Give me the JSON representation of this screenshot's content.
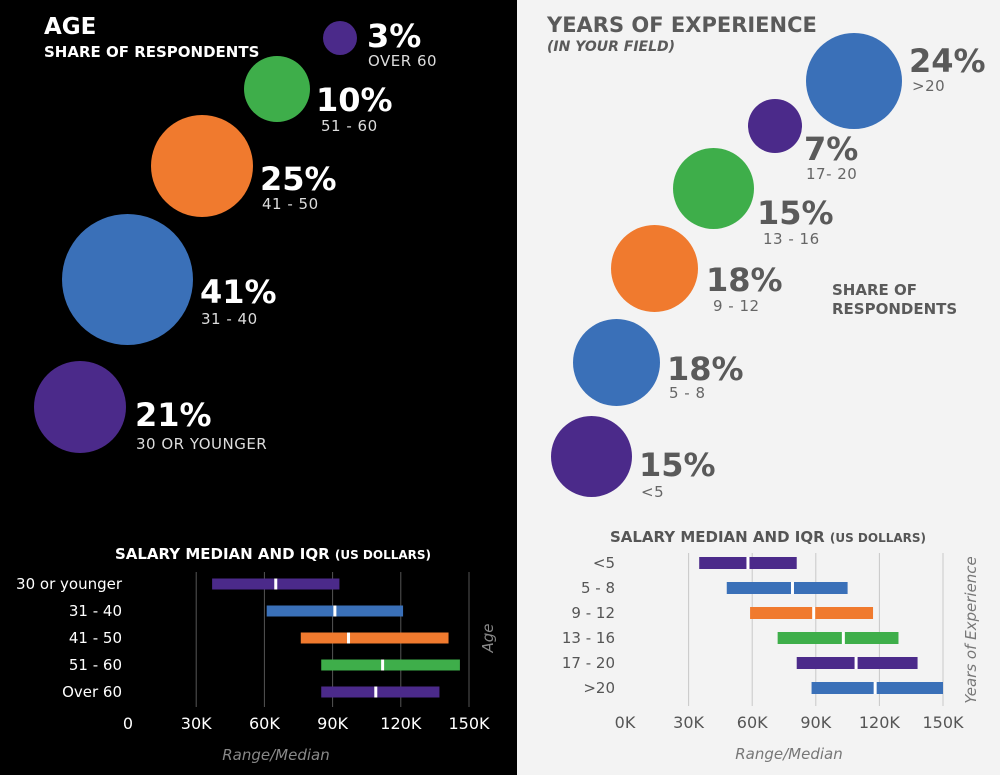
{
  "age_panel": {
    "title": "AGE",
    "subtitle": "SHARE OF RESPONDENTS",
    "bubbles": [
      {
        "pct": "3%",
        "label": "OVER 60",
        "value": 3,
        "color": "#4b2a8a"
      },
      {
        "pct": "10%",
        "label": "51 - 60",
        "value": 10,
        "color": "#3eae4a"
      },
      {
        "pct": "25%",
        "label": "41 - 50",
        "value": 25,
        "color": "#f07a2e"
      },
      {
        "pct": "41%",
        "label": "31 - 40",
        "value": 41,
        "color": "#3a70b8"
      },
      {
        "pct": "21%",
        "label": "30 OR YOUNGER",
        "value": 21,
        "color": "#4b2a8a"
      }
    ]
  },
  "experience_panel": {
    "title": "YEARS OF EXPERIENCE",
    "subtitle": "(IN YOUR FIELD)",
    "share_label_1": "SHARE OF",
    "share_label_2": "RESPONDENTS",
    "bubbles": [
      {
        "pct": "24%",
        "label": ">20",
        "value": 24,
        "color": "#3a70b8"
      },
      {
        "pct": "7%",
        "label": "17- 20",
        "value": 7,
        "color": "#4b2a8a"
      },
      {
        "pct": "15%",
        "label": "13 - 16",
        "value": 15,
        "color": "#3eae4a"
      },
      {
        "pct": "18%",
        "label": "9 - 12",
        "value": 18,
        "color": "#f07a2e"
      },
      {
        "pct": "18%",
        "label": "5 - 8",
        "value": 18,
        "color": "#3a70b8"
      },
      {
        "pct": "15%",
        "label": "<5",
        "value": 15,
        "color": "#4b2a8a"
      }
    ]
  },
  "chart_data": [
    {
      "type": "bar",
      "subtype": "range-with-median",
      "title": "SALARY MEDIAN AND IQR",
      "title_units": "(US DOLLARS)",
      "xlabel": "Range/Median",
      "ylabel": "Age",
      "xlim": [
        0,
        150000
      ],
      "xticks": [
        0,
        30000,
        60000,
        90000,
        120000,
        150000
      ],
      "xtick_labels": [
        "0",
        "30K",
        "60K",
        "90K",
        "120K",
        "150K"
      ],
      "grid": true,
      "categories": [
        "30 or younger",
        "31 - 40",
        "41 - 50",
        "51 - 60",
        "Over 60"
      ],
      "colors": [
        "#4b2a8a",
        "#3a70b8",
        "#f07a2e",
        "#3eae4a",
        "#4b2a8a"
      ],
      "low": [
        37000,
        61000,
        76000,
        85000,
        85000
      ],
      "median": [
        65000,
        91000,
        97000,
        112000,
        109000
      ],
      "high": [
        93000,
        121000,
        141000,
        146000,
        137000
      ]
    },
    {
      "type": "bar",
      "subtype": "range-with-median",
      "title": "SALARY MEDIAN AND IQR",
      "title_units": "(US DOLLARS)",
      "xlabel": "Range/Median",
      "ylabel": "Years of Experience",
      "xlim": [
        0,
        150000
      ],
      "xticks": [
        0,
        30000,
        60000,
        90000,
        120000,
        150000
      ],
      "xtick_labels": [
        "0K",
        "30K",
        "60K",
        "90K",
        "120K",
        "150K"
      ],
      "grid": true,
      "categories": [
        "<5",
        "5 - 8",
        "9 - 12",
        "13 - 16",
        "17 - 20",
        ">20"
      ],
      "colors": [
        "#4b2a8a",
        "#3a70b8",
        "#f07a2e",
        "#3eae4a",
        "#4b2a8a",
        "#3a70b8"
      ],
      "low": [
        35000,
        48000,
        59000,
        72000,
        81000,
        88000
      ],
      "median": [
        58000,
        79000,
        89000,
        103000,
        109000,
        118000
      ],
      "high": [
        81000,
        105000,
        117000,
        129000,
        138000,
        150000
      ]
    }
  ]
}
